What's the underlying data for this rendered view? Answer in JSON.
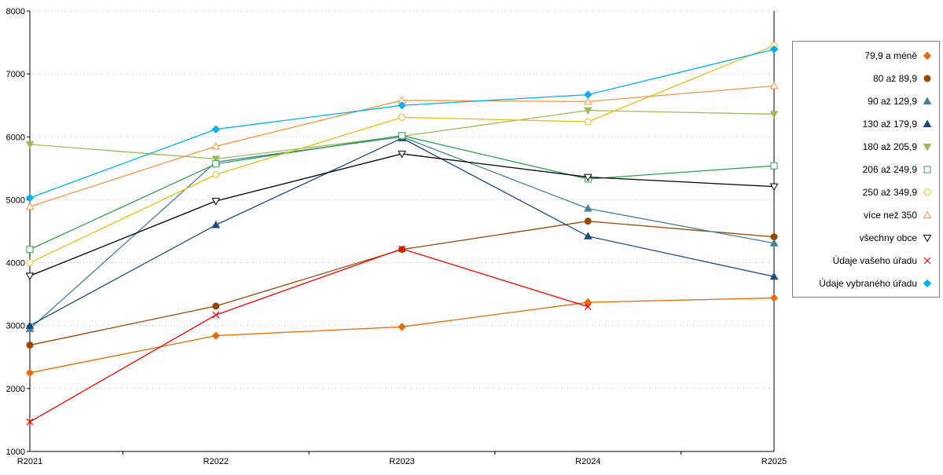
{
  "chart_data": {
    "type": "line",
    "title": "",
    "xlabel": "",
    "ylabel": "",
    "categories": [
      "R2021",
      "R2022",
      "R2023",
      "R2024",
      "R2025"
    ],
    "ylim": [
      1000,
      8000
    ],
    "ytick": 1000,
    "grid": "horizontal-dotted",
    "legend_position": "right",
    "series": [
      {
        "name": "79,9 a méně",
        "color": "#E46C0A",
        "shape": "diamond",
        "filled": true,
        "values": [
          2250,
          2840,
          2980,
          3370,
          3440
        ]
      },
      {
        "name": "80 až 89,9",
        "color": "#974706",
        "shape": "circle",
        "filled": true,
        "values": [
          2690,
          3310,
          4210,
          4660,
          4410
        ]
      },
      {
        "name": "90 až 129,9",
        "color": "#45829B",
        "shape": "triangle-up",
        "filled": true,
        "values": [
          2950,
          5600,
          6000,
          4860,
          4310
        ]
      },
      {
        "name": "130 až 179,9",
        "color": "#1F497D",
        "shape": "triangle-up",
        "filled": true,
        "values": [
          3000,
          4600,
          5980,
          4420,
          3780
        ]
      },
      {
        "name": "180 až 205,9",
        "color": "#9BBB59",
        "shape": "triangle-down",
        "filled": true,
        "values": [
          5880,
          5650,
          6010,
          6420,
          6360
        ]
      },
      {
        "name": "206 až 249,9",
        "color": "#2EA04D",
        "shape": "square",
        "filled": false,
        "values": [
          4210,
          5570,
          6020,
          5330,
          5540
        ]
      },
      {
        "name": "250 až 349,9",
        "color": "#E6BE17",
        "shape": "circle",
        "filled": false,
        "values": [
          4000,
          5400,
          6310,
          6240,
          7450
        ]
      },
      {
        "name": "více než 350",
        "color": "#F79646",
        "shape": "triangle-up",
        "filled": false,
        "values": [
          4890,
          5850,
          6580,
          6560,
          6810
        ]
      },
      {
        "name": "všechny obce",
        "color": "#000000",
        "shape": "triangle-down",
        "filled": false,
        "values": [
          3790,
          4980,
          5730,
          5360,
          5210
        ]
      },
      {
        "name": "Údaje vašeho úřadu",
        "color": "#FF0000",
        "shape": "x",
        "filled": false,
        "values": [
          1470,
          3170,
          4220,
          3300,
          null
        ]
      },
      {
        "name": "Údaje vybraného úřadu",
        "color": "#00B0F0",
        "shape": "diamond",
        "filled": true,
        "values": [
          5030,
          6120,
          6500,
          6670,
          7390
        ]
      }
    ]
  }
}
